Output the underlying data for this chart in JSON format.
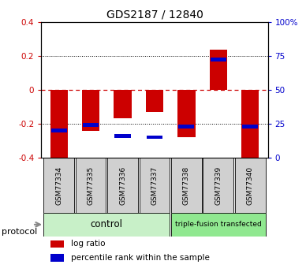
{
  "title": "GDS2187 / 12840",
  "samples": [
    "GSM77334",
    "GSM77335",
    "GSM77336",
    "GSM77337",
    "GSM77338",
    "GSM77339",
    "GSM77340"
  ],
  "log_ratio": [
    -0.4,
    -0.24,
    -0.17,
    -0.13,
    -0.28,
    0.235,
    -0.42
  ],
  "percentile_rank": [
    20,
    24,
    16,
    15,
    23,
    72,
    23
  ],
  "ylim": [
    -0.4,
    0.4
  ],
  "yticks": [
    -0.4,
    -0.2,
    0.0,
    0.2,
    0.4
  ],
  "ytick_labels_left": [
    "-0.4",
    "-0.2",
    "0",
    "0.2",
    "0.4"
  ],
  "ytick_labels_right": [
    "0",
    "25",
    "50",
    "75",
    "100%"
  ],
  "control_indices": [
    0,
    1,
    2,
    3
  ],
  "treated_indices": [
    4,
    5,
    6
  ],
  "control_label": "control",
  "treated_label": "triple-fusion transfected",
  "protocol_label": "protocol",
  "bar_width": 0.55,
  "log_ratio_color": "#cc0000",
  "percentile_color": "#0000cc",
  "control_bg": "#c8f0c8",
  "treated_bg": "#90e890",
  "sample_bg": "#d0d0d0",
  "legend_lr": "log ratio",
  "legend_pr": "percentile rank within the sample",
  "zero_line_color": "#cc0000",
  "left_tick_color": "#cc0000",
  "right_tick_color": "#0000cc"
}
